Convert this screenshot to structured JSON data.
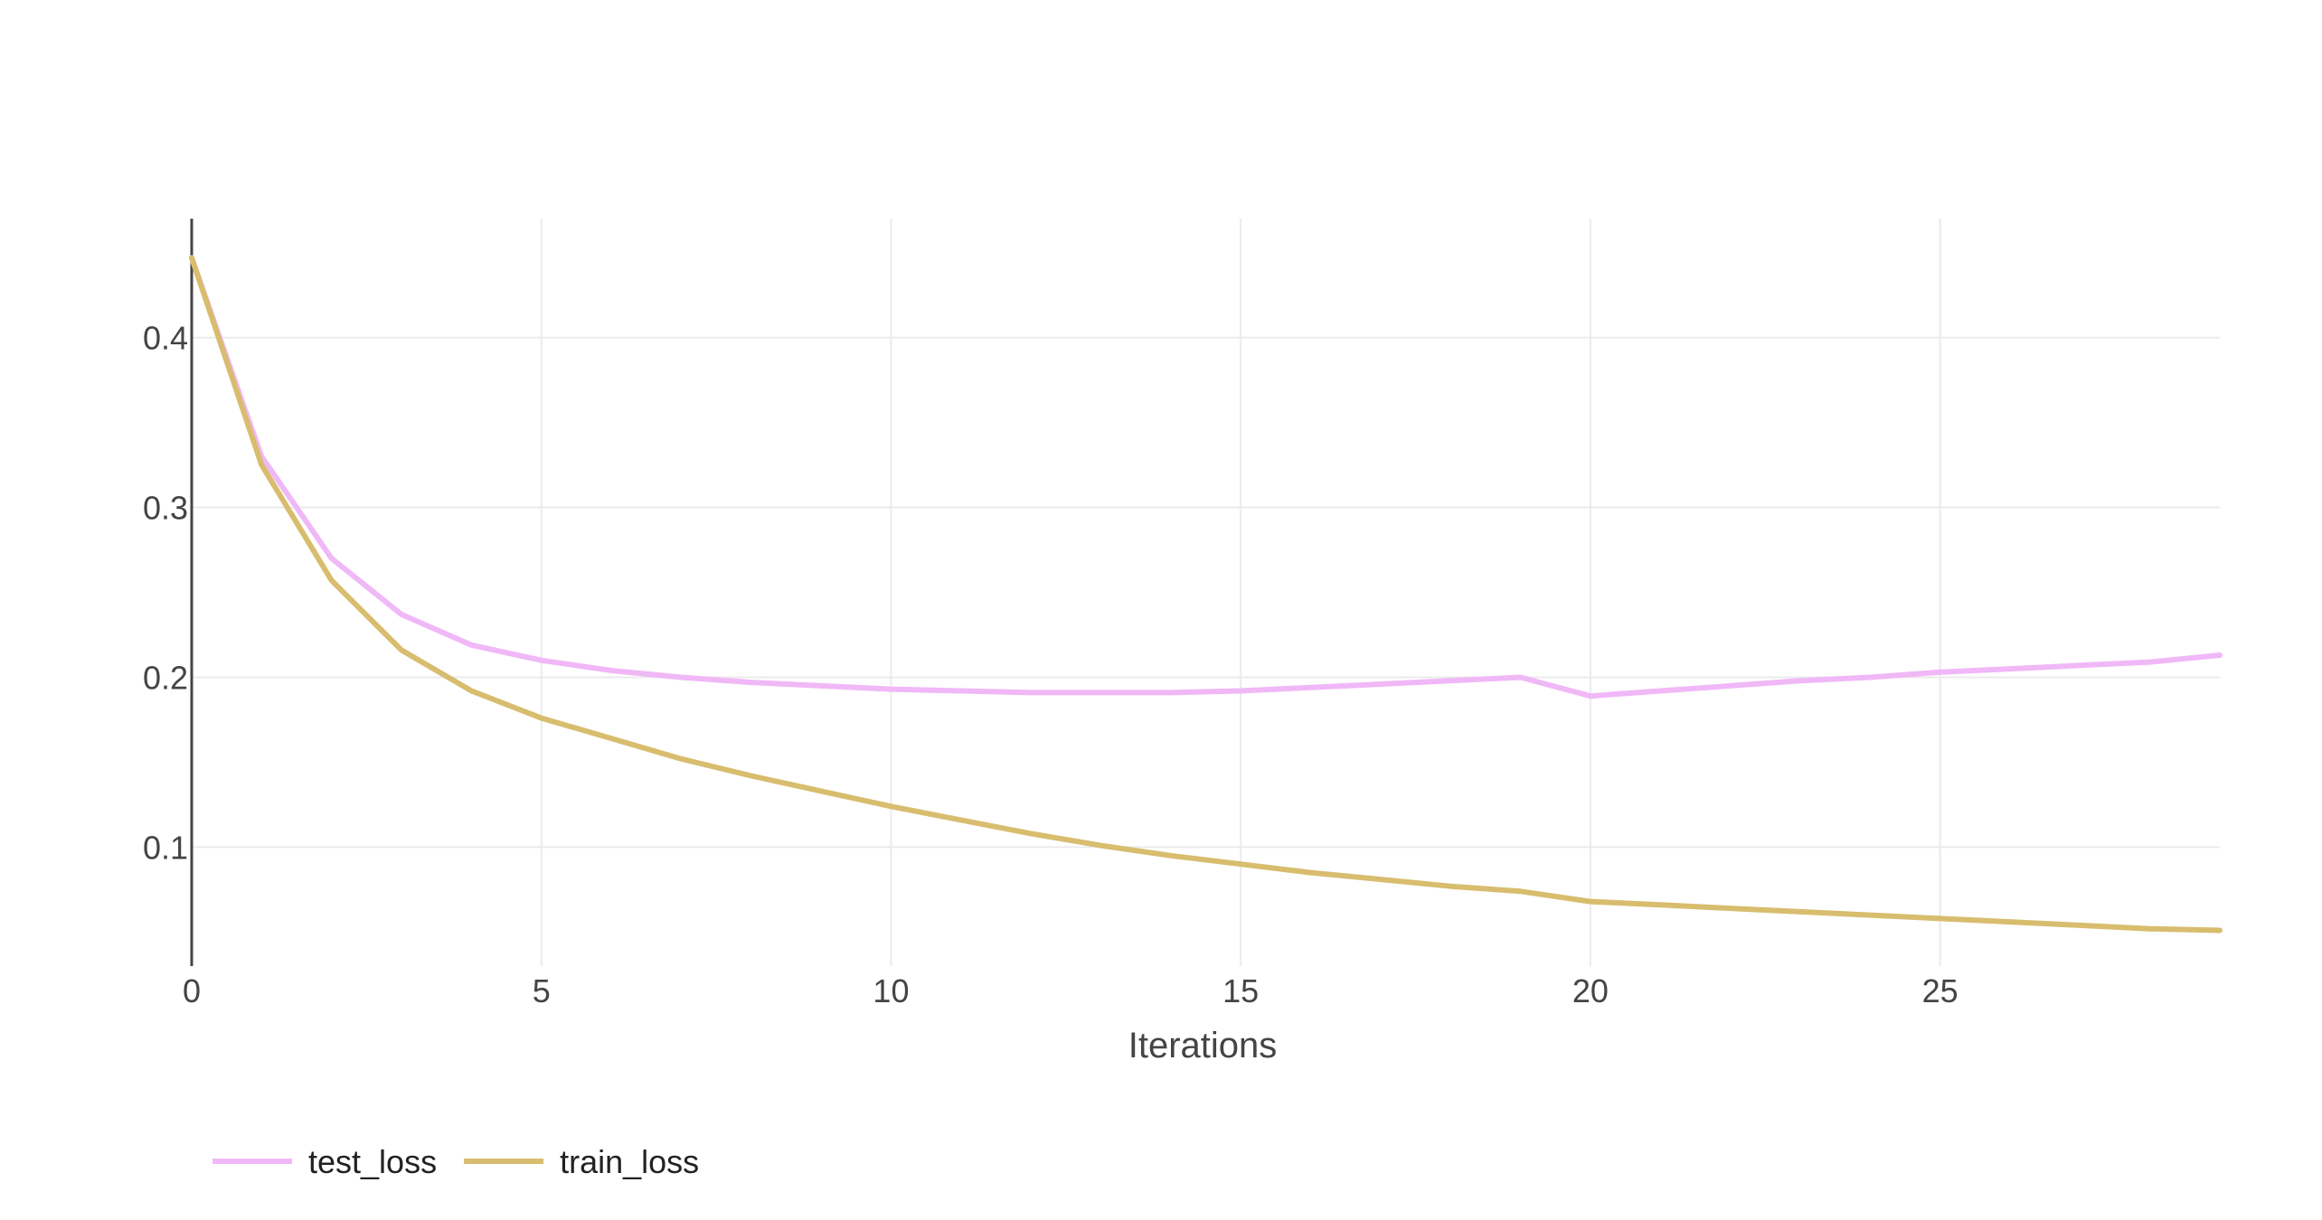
{
  "chart_data": {
    "type": "line",
    "title": "",
    "xlabel": "Iterations",
    "ylabel": "",
    "xlim": [
      0,
      29
    ],
    "ylim": [
      0.03,
      0.47
    ],
    "xticks": [
      0,
      5,
      10,
      15,
      20,
      25
    ],
    "yticks": [
      0.1,
      0.2,
      0.3,
      0.4
    ],
    "grid": true,
    "legend_position": "bottom-left",
    "x": [
      0,
      1,
      2,
      3,
      4,
      5,
      6,
      7,
      8,
      9,
      10,
      11,
      12,
      13,
      14,
      15,
      16,
      17,
      18,
      19,
      20,
      21,
      22,
      23,
      24,
      25,
      26,
      27,
      28,
      29
    ],
    "series": [
      {
        "name": "test_loss",
        "color": "#f0b8f7",
        "values": [
          0.447,
          0.33,
          0.27,
          0.237,
          0.219,
          0.21,
          0.204,
          0.2,
          0.197,
          0.195,
          0.193,
          0.192,
          0.191,
          0.191,
          0.191,
          0.192,
          0.194,
          0.196,
          0.198,
          0.2,
          0.189,
          0.192,
          0.195,
          0.198,
          0.2,
          0.203,
          0.205,
          0.207,
          0.209,
          0.213
        ]
      },
      {
        "name": "train_loss",
        "color": "#d8bd6e",
        "values": [
          0.447,
          0.325,
          0.257,
          0.216,
          0.192,
          0.176,
          0.164,
          0.152,
          0.142,
          0.133,
          0.124,
          0.116,
          0.108,
          0.101,
          0.095,
          0.09,
          0.085,
          0.081,
          0.077,
          0.074,
          0.068,
          0.066,
          0.064,
          0.062,
          0.06,
          0.058,
          0.056,
          0.054,
          0.052,
          0.051
        ]
      }
    ]
  },
  "style": {
    "grid_color": "#ebebeb",
    "axis_color": "#444444",
    "background": "#ffffff"
  }
}
